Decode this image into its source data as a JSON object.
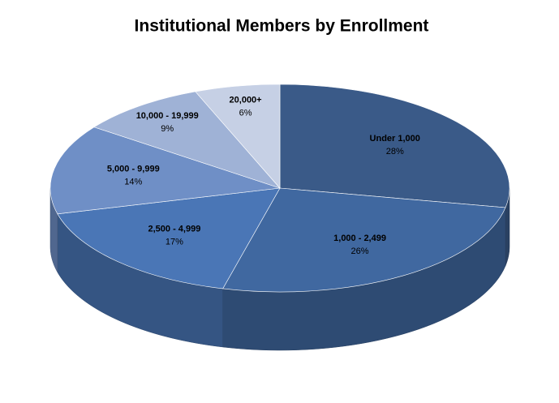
{
  "chart_data": {
    "type": "pie",
    "title": "Institutional Members by Enrollment",
    "categories": [
      "Under 1,000",
      "1,000 - 2,499",
      "2,500 - 4,999",
      "5,000 - 9,999",
      "10,000 - 19,999",
      "20,000+"
    ],
    "values": [
      28,
      26,
      17,
      14,
      9,
      6
    ],
    "value_labels": [
      "28%",
      "26%",
      "17%",
      "14%",
      "9%",
      "6%"
    ],
    "colors": [
      "#3a5a88",
      "#4068a0",
      "#4a76b6",
      "#6f8fc6",
      "#9fb2d6",
      "#c6d0e5"
    ]
  }
}
